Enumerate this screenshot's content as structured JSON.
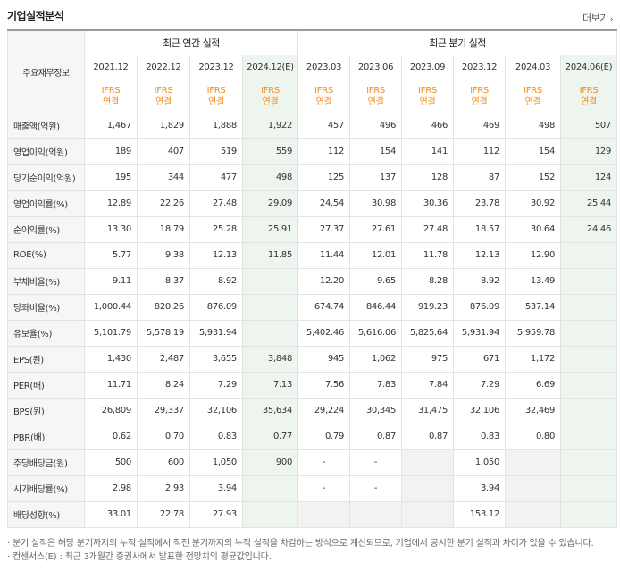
{
  "header": {
    "title": "기업실적분석",
    "more_label": "더보기",
    "more_icon": "chevron-right-icon"
  },
  "table": {
    "label_header": "주요재무정보",
    "annual_header": "최근 연간 실적",
    "quarter_header": "최근 분기 실적",
    "periods": [
      "2021.12",
      "2022.12",
      "2023.12",
      "2024.12(E)",
      "2023.03",
      "2023.06",
      "2023.09",
      "2023.12",
      "2024.03",
      "2024.06(E)"
    ],
    "ifrs_top": "IFRS",
    "ifrs_bottom": "연결",
    "rows": [
      {
        "label": "매출액(억원)",
        "values": [
          "1,467",
          "1,829",
          "1,888",
          "1,922",
          "457",
          "496",
          "466",
          "469",
          "498",
          "507"
        ]
      },
      {
        "label": "영업이익(억원)",
        "values": [
          "189",
          "407",
          "519",
          "559",
          "112",
          "154",
          "141",
          "112",
          "154",
          "129"
        ]
      },
      {
        "label": "당기순이익(억원)",
        "values": [
          "195",
          "344",
          "477",
          "498",
          "125",
          "137",
          "128",
          "87",
          "152",
          "124"
        ]
      },
      {
        "label": "영업이익률(%)",
        "values": [
          "12.89",
          "22.26",
          "27.48",
          "29.09",
          "24.54",
          "30.98",
          "30.36",
          "23.78",
          "30.92",
          "25.44"
        ]
      },
      {
        "label": "순이익률(%)",
        "values": [
          "13.30",
          "18.79",
          "25.28",
          "25.91",
          "27.37",
          "27.61",
          "27.48",
          "18.57",
          "30.64",
          "24.46"
        ]
      },
      {
        "label": "ROE(%)",
        "values": [
          "5.77",
          "9.38",
          "12.13",
          "11.85",
          "11.44",
          "12.01",
          "11.78",
          "12.13",
          "12.90",
          ""
        ]
      },
      {
        "label": "부채비율(%)",
        "values": [
          "9.11",
          "8.37",
          "8.92",
          "",
          "12.20",
          "9.65",
          "8.28",
          "8.92",
          "13.49",
          ""
        ]
      },
      {
        "label": "당좌비율(%)",
        "values": [
          "1,000.44",
          "820.26",
          "876.09",
          "",
          "674.74",
          "846.44",
          "919.23",
          "876.09",
          "537.14",
          ""
        ]
      },
      {
        "label": "유보율(%)",
        "values": [
          "5,101.79",
          "5,578.19",
          "5,931.94",
          "",
          "5,402.46",
          "5,616.06",
          "5,825.64",
          "5,931.94",
          "5,959.78",
          ""
        ]
      },
      {
        "label": "EPS(원)",
        "values": [
          "1,430",
          "2,487",
          "3,655",
          "3,848",
          "945",
          "1,062",
          "975",
          "671",
          "1,172",
          ""
        ]
      },
      {
        "label": "PER(배)",
        "values": [
          "11.71",
          "8.24",
          "7.29",
          "7.13",
          "7.56",
          "7.83",
          "7.84",
          "7.29",
          "6.69",
          ""
        ]
      },
      {
        "label": "BPS(원)",
        "values": [
          "26,809",
          "29,337",
          "32,106",
          "35,634",
          "29,224",
          "30,345",
          "31,475",
          "32,106",
          "32,469",
          ""
        ]
      },
      {
        "label": "PBR(배)",
        "values": [
          "0.62",
          "0.70",
          "0.83",
          "0.77",
          "0.79",
          "0.87",
          "0.87",
          "0.83",
          "0.80",
          ""
        ]
      },
      {
        "label": "주당배당금(원)",
        "values": [
          "500",
          "600",
          "1,050",
          "900",
          "-",
          "-",
          "",
          "1,050",
          "",
          ""
        ]
      },
      {
        "label": "시가배당률(%)",
        "values": [
          "2.98",
          "2.93",
          "3.94",
          "",
          "-",
          "-",
          "",
          "3.94",
          "",
          ""
        ]
      },
      {
        "label": "배당성향(%)",
        "values": [
          "33.01",
          "22.78",
          "27.93",
          "",
          "",
          "",
          "",
          "153.12",
          "",
          ""
        ]
      }
    ]
  },
  "notes": [
    "· 분기 실적은 해당 분기까지의 누적 실적에서 직전 분기까지의 누적 실적을 차감하는 방식으로 계산되므로, 기업에서 공시한 분기 실적과 차이가 있을 수 있습니다.",
    "· 컨센서스(E) : 최근 3개월간 증권사에서 발표한 전망치의 평균값입니다."
  ]
}
